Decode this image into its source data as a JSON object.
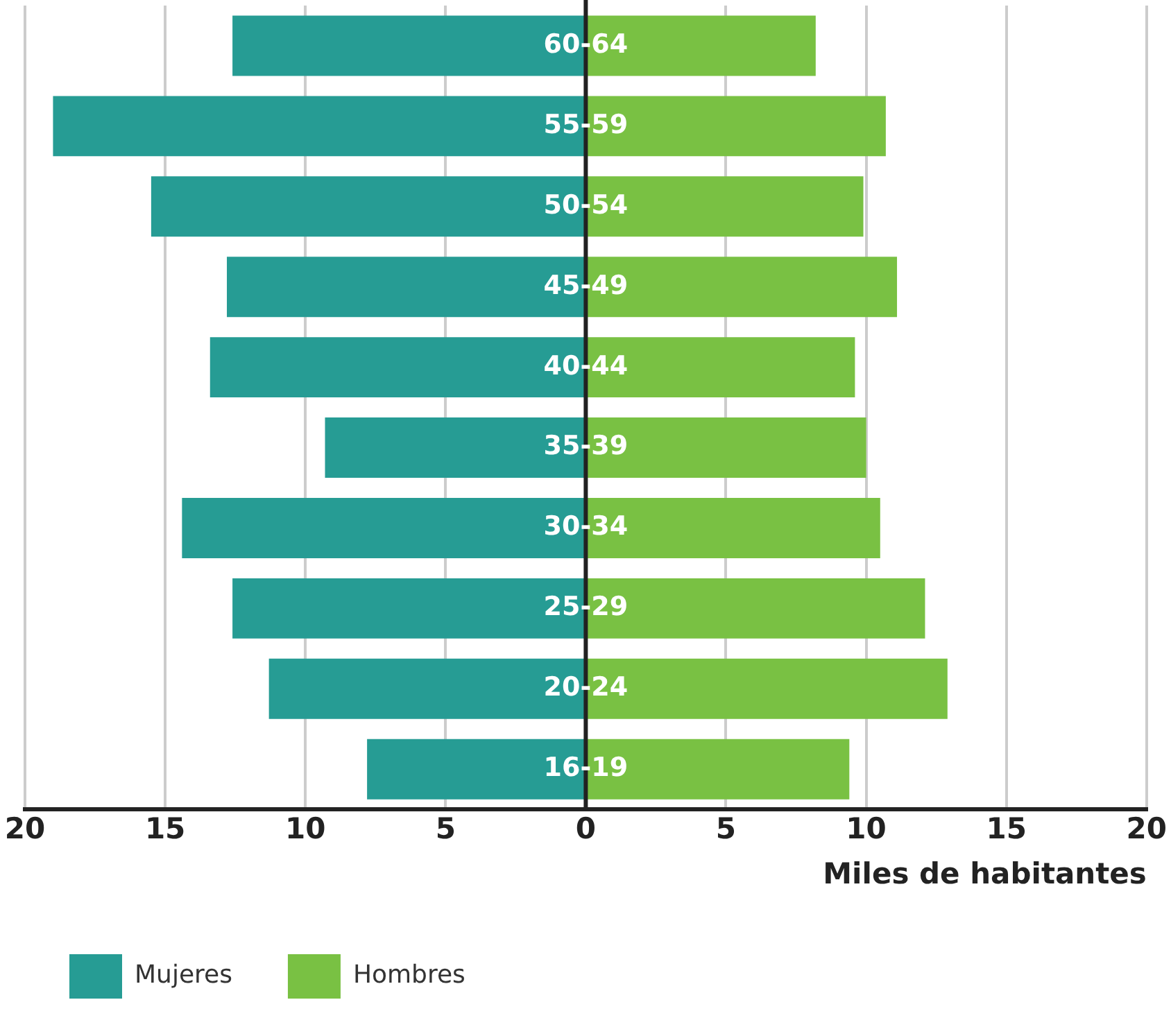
{
  "chart_data": {
    "type": "bar",
    "orientation": "horizontal",
    "stacked": true,
    "xlabel": "Miles de habitantes",
    "categories": [
      "60-64",
      "55-59",
      "50-54",
      "45-49",
      "40-44",
      "35-39",
      "30-34",
      "25-29",
      "20-24",
      "16-19"
    ],
    "series": [
      {
        "name": "Mujeres",
        "color": "#269c94",
        "values": [
          -12.6,
          -19.0,
          -15.5,
          -12.8,
          -13.4,
          -9.3,
          -14.4,
          -12.6,
          -11.3,
          -7.8
        ]
      },
      {
        "name": "Hombres",
        "color": "#79c143",
        "values": [
          8.2,
          10.7,
          9.9,
          11.1,
          9.6,
          10.0,
          10.5,
          12.1,
          12.9,
          9.4
        ]
      }
    ],
    "xlim": [
      -20,
      20
    ],
    "xticks": [
      {
        "value": -20,
        "label": "20"
      },
      {
        "value": -15,
        "label": "15"
      },
      {
        "value": -10,
        "label": "10"
      },
      {
        "value": -5,
        "label": "5"
      },
      0,
      5,
      10,
      15,
      20
    ],
    "grid": "x",
    "legend": "bottom left"
  }
}
